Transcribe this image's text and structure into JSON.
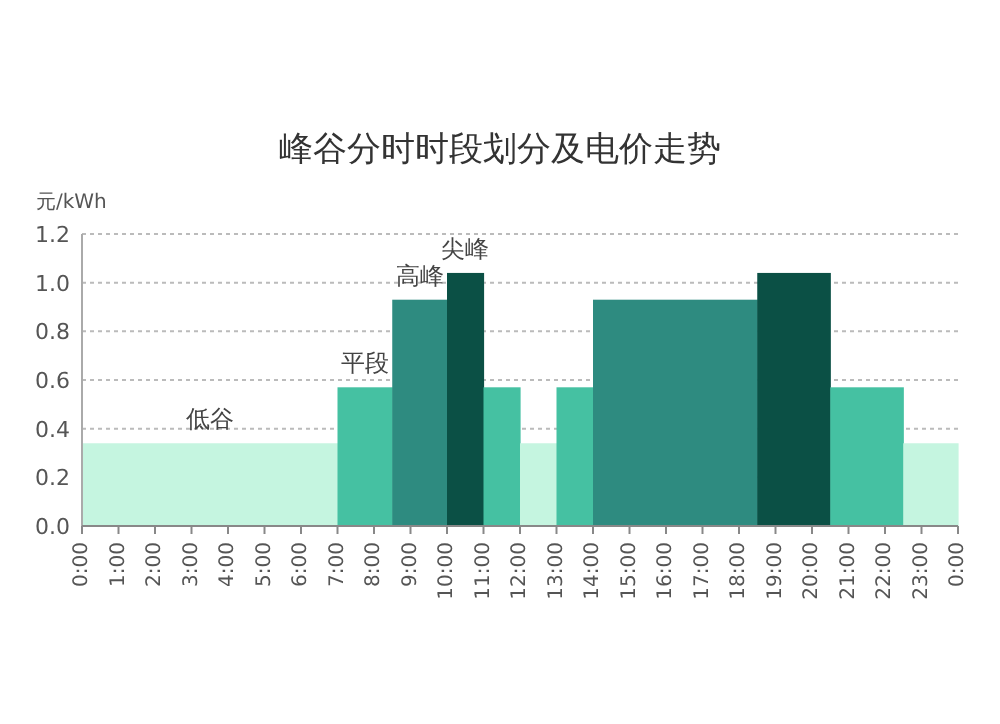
{
  "chart_data": {
    "type": "bar",
    "title": "峰谷分时时段划分及电价走势",
    "ylabel": "元/kWh",
    "x": [
      3.5,
      7.75,
      9.25,
      10.5,
      11.5,
      12.5,
      13.5,
      16.25,
      19.5,
      21.5,
      23.25
    ],
    "values": [
      0.34,
      0.57,
      0.93,
      1.04,
      0.57,
      0.34,
      0.57,
      0.93,
      1.04,
      0.57,
      0.34
    ],
    "colors": [
      "#c5f5e0",
      "#45c1a2",
      "#2e8b80",
      "#0b5045",
      "#45c1a2",
      "#c5f5e0",
      "#45c1a2",
      "#2e8b80",
      "#0b5045",
      "#45c1a2",
      "#c5f5e0"
    ],
    "xlim": [
      0,
      24
    ],
    "xticks": [
      {
        "value": 0,
        "label": "0:00"
      },
      {
        "value": 1,
        "label": "1:00"
      },
      {
        "value": 2,
        "label": "2:00"
      },
      {
        "value": 3,
        "label": "3:00"
      },
      {
        "value": 4,
        "label": "4:00"
      },
      {
        "value": 5,
        "label": "5:00"
      },
      {
        "value": 6,
        "label": "6:00"
      },
      {
        "value": 7,
        "label": "7:00"
      },
      {
        "value": 8,
        "label": "8:00"
      },
      {
        "value": 9,
        "label": "9:00"
      },
      {
        "value": 10,
        "label": "10:00"
      },
      {
        "value": 11,
        "label": "11:00"
      },
      {
        "value": 12,
        "label": "12:00"
      },
      {
        "value": 13,
        "label": "13:00"
      },
      {
        "value": 14,
        "label": "14:00"
      },
      {
        "value": 15,
        "label": "15:00"
      },
      {
        "value": 16,
        "label": "16:00"
      },
      {
        "value": 17,
        "label": "17:00"
      },
      {
        "value": 18,
        "label": "18:00"
      },
      {
        "value": 19,
        "label": "19:00"
      },
      {
        "value": 20,
        "label": "20:00"
      },
      {
        "value": 21,
        "label": "21:00"
      },
      {
        "value": 22,
        "label": "22:00"
      },
      {
        "value": 23,
        "label": "23:00"
      },
      {
        "value": 24,
        "label": "0:00"
      }
    ],
    "ylim": [
      0,
      1.2
    ],
    "yticks": [
      {
        "value": 0,
        "label": "0.0"
      },
      {
        "value": 0.2,
        "label": "0.2"
      },
      {
        "value": 0.4,
        "label": "0.4"
      },
      {
        "value": 0.6,
        "label": "0.6"
      },
      {
        "value": 0.8,
        "label": "0.8"
      },
      {
        "value": 1,
        "label": "1.0"
      },
      {
        "value": 1.2,
        "label": "1.2"
      }
    ],
    "grid": "y",
    "annotations": [
      {
        "text": "低谷",
        "x": 3.5,
        "y": 0.34
      },
      {
        "text": "平段",
        "x": 7.75,
        "y": 0.57
      },
      {
        "text": "高峰",
        "x": 9.25,
        "y": 0.93
      },
      {
        "text": "尖峰",
        "x": 10.5,
        "y": 1.04
      }
    ]
  }
}
